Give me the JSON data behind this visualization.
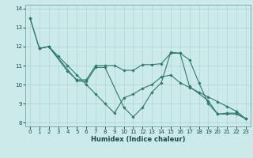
{
  "title": "",
  "xlabel": "Humidex (Indice chaleur)",
  "xlim": [
    -0.5,
    23.5
  ],
  "ylim": [
    7.8,
    14.2
  ],
  "xticks": [
    0,
    1,
    2,
    3,
    4,
    5,
    6,
    7,
    8,
    9,
    10,
    11,
    12,
    13,
    14,
    15,
    16,
    17,
    18,
    19,
    20,
    21,
    22,
    23
  ],
  "yticks": [
    8,
    9,
    10,
    11,
    12,
    13,
    14
  ],
  "bg_color": "#cdeaea",
  "line_color": "#2a7a6a",
  "grid_color": "#afd4d4",
  "lines": [
    {
      "x": [
        0,
        1,
        2,
        5,
        6,
        7,
        8,
        10,
        11,
        12,
        13,
        14,
        15,
        16,
        17,
        19,
        20,
        21,
        22,
        23
      ],
      "y": [
        13.5,
        11.9,
        12.0,
        10.2,
        10.15,
        10.9,
        10.9,
        8.8,
        8.3,
        8.8,
        9.6,
        10.1,
        11.7,
        11.65,
        9.9,
        9.15,
        8.45,
        8.45,
        8.45,
        8.2
      ]
    },
    {
      "x": [
        1,
        2,
        4,
        5,
        6,
        7,
        8,
        9,
        10,
        11,
        12,
        13,
        14,
        15,
        16,
        17,
        18,
        19,
        20,
        21,
        22,
        23
      ],
      "y": [
        11.9,
        12.0,
        10.7,
        10.25,
        10.25,
        11.0,
        11.0,
        11.0,
        10.75,
        10.75,
        11.05,
        11.05,
        11.1,
        11.65,
        11.65,
        11.3,
        10.1,
        9.0,
        8.45,
        8.5,
        8.5,
        8.2
      ]
    },
    {
      "x": [
        0,
        1,
        2,
        3,
        4,
        5,
        6,
        7,
        8,
        9,
        10,
        11,
        12,
        13,
        14,
        15,
        16,
        17,
        18,
        19,
        20,
        21,
        22,
        23
      ],
      "y": [
        13.5,
        11.9,
        12.0,
        11.5,
        11.0,
        10.5,
        10.0,
        9.5,
        9.0,
        8.5,
        9.3,
        9.5,
        9.8,
        10.0,
        10.4,
        10.5,
        10.1,
        9.85,
        9.6,
        9.35,
        9.1,
        8.85,
        8.6,
        8.2
      ]
    }
  ]
}
